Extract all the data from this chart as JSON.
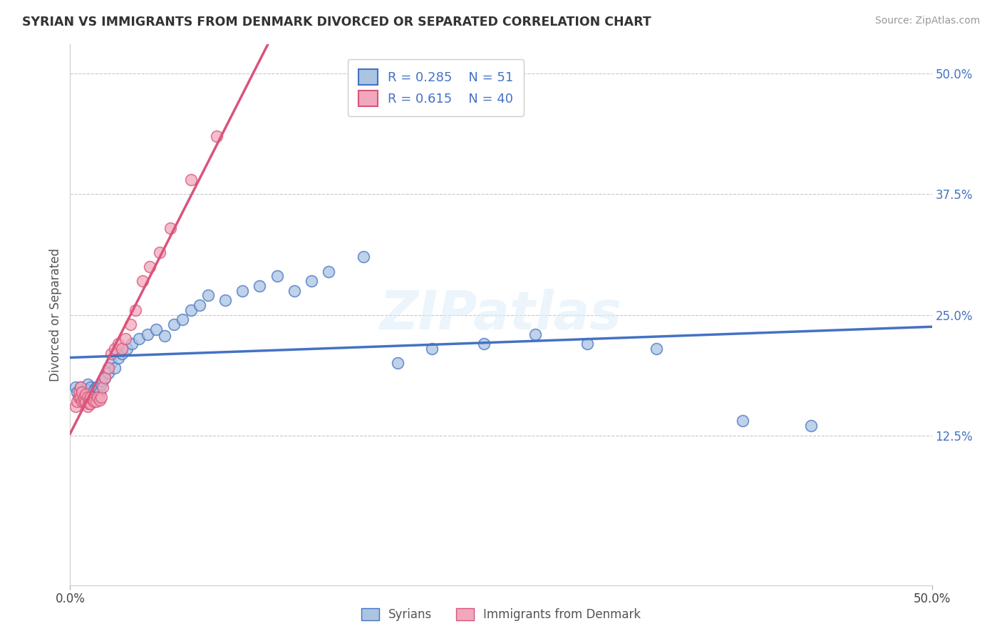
{
  "title": "SYRIAN VS IMMIGRANTS FROM DENMARK DIVORCED OR SEPARATED CORRELATION CHART",
  "source": "Source: ZipAtlas.com",
  "ylabel": "Divorced or Separated",
  "xlim": [
    0.0,
    0.5
  ],
  "ylim": [
    -0.03,
    0.53
  ],
  "xtick_positions": [
    0.0,
    0.5
  ],
  "xtick_labels": [
    "0.0%",
    "50.0%"
  ],
  "ytick_vals": [
    0.125,
    0.25,
    0.375,
    0.5
  ],
  "ytick_labels": [
    "12.5%",
    "25.0%",
    "37.5%",
    "50.0%"
  ],
  "r_syrians": 0.285,
  "n_syrians": 51,
  "r_denmark": 0.615,
  "n_denmark": 40,
  "color_syrians": "#aac4e2",
  "color_denmark": "#f2a8bc",
  "line_color_syrians": "#4472c4",
  "line_color_denmark": "#d9547a",
  "background_color": "#ffffff",
  "grid_color": "#c8c8c8",
  "syrians_x": [
    0.003,
    0.004,
    0.005,
    0.006,
    0.007,
    0.008,
    0.009,
    0.01,
    0.01,
    0.011,
    0.012,
    0.013,
    0.014,
    0.015,
    0.016,
    0.017,
    0.018,
    0.019,
    0.02,
    0.022,
    0.024,
    0.026,
    0.028,
    0.03,
    0.033,
    0.036,
    0.04,
    0.045,
    0.05,
    0.055,
    0.06,
    0.065,
    0.07,
    0.075,
    0.08,
    0.09,
    0.1,
    0.11,
    0.12,
    0.13,
    0.14,
    0.15,
    0.17,
    0.19,
    0.21,
    0.24,
    0.27,
    0.3,
    0.34,
    0.39,
    0.43
  ],
  "syrians_y": [
    0.175,
    0.17,
    0.165,
    0.175,
    0.17,
    0.168,
    0.172,
    0.17,
    0.178,
    0.172,
    0.175,
    0.168,
    0.172,
    0.175,
    0.175,
    0.17,
    0.178,
    0.182,
    0.185,
    0.19,
    0.2,
    0.195,
    0.205,
    0.21,
    0.215,
    0.22,
    0.225,
    0.23,
    0.235,
    0.228,
    0.24,
    0.245,
    0.255,
    0.26,
    0.27,
    0.265,
    0.275,
    0.28,
    0.29,
    0.275,
    0.285,
    0.295,
    0.31,
    0.2,
    0.215,
    0.22,
    0.23,
    0.22,
    0.215,
    0.14,
    0.135
  ],
  "denmark_x": [
    0.003,
    0.004,
    0.005,
    0.005,
    0.006,
    0.006,
    0.007,
    0.007,
    0.008,
    0.008,
    0.009,
    0.009,
    0.01,
    0.01,
    0.011,
    0.011,
    0.012,
    0.012,
    0.013,
    0.014,
    0.015,
    0.016,
    0.017,
    0.018,
    0.019,
    0.02,
    0.022,
    0.024,
    0.026,
    0.028,
    0.03,
    0.032,
    0.035,
    0.038,
    0.042,
    0.046,
    0.052,
    0.058,
    0.07,
    0.085
  ],
  "denmark_y": [
    0.155,
    0.16,
    0.165,
    0.17,
    0.165,
    0.175,
    0.16,
    0.17,
    0.16,
    0.165,
    0.16,
    0.168,
    0.165,
    0.155,
    0.162,
    0.158,
    0.158,
    0.165,
    0.162,
    0.16,
    0.16,
    0.165,
    0.162,
    0.165,
    0.175,
    0.185,
    0.195,
    0.21,
    0.215,
    0.22,
    0.215,
    0.225,
    0.24,
    0.255,
    0.285,
    0.3,
    0.315,
    0.34,
    0.39,
    0.435
  ]
}
